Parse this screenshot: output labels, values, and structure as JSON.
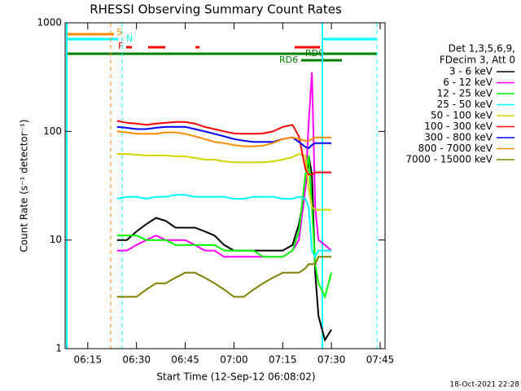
{
  "chart_data": {
    "type": "line",
    "title": "RHESSI Observing Summary Count Rates",
    "x_label": "Start Time (12-Sep-12 06:08:02)",
    "y_label": "Count Rate (s⁻¹ detector⁻¹)",
    "log_y": true,
    "legend_header": [
      "Det 1,3,5,6,9,",
      "FDecim 3, Att 0"
    ],
    "flags": [
      "S",
      "N",
      "F",
      "RD0",
      "RD6"
    ],
    "footer": "18-Oct-2021 22:28",
    "xlim": [
      8.03,
      106.5
    ],
    "xticks": [
      {
        "value": 15,
        "label": "06:15"
      },
      {
        "value": 30,
        "label": "06:30"
      },
      {
        "value": 45,
        "label": "06:45"
      },
      {
        "value": 60,
        "label": "07:00"
      },
      {
        "value": 75,
        "label": "07:15"
      },
      {
        "value": 90,
        "label": "07:30"
      },
      {
        "value": 105,
        "label": "07:45"
      }
    ],
    "ylim": [
      1,
      1000
    ],
    "yticks": [
      1,
      10,
      100,
      1000
    ],
    "x": [
      24,
      27,
      30,
      33,
      36,
      39,
      42,
      45,
      48,
      51,
      54,
      57,
      60,
      63,
      66,
      69,
      72,
      75,
      78,
      80,
      82,
      83,
      84,
      85,
      86,
      88,
      90
    ],
    "series": [
      {
        "name": "3 - 6 keV",
        "color": "#000000",
        "values": [
          10,
          10,
          12,
          14,
          16,
          15,
          13,
          13,
          13,
          12,
          11,
          9,
          8,
          8,
          8,
          8,
          8,
          8,
          9,
          14,
          30,
          60,
          40,
          5,
          2,
          1.2,
          1.5
        ]
      },
      {
        "name": "6 - 12 keV",
        "color": "#ff00ff",
        "values": [
          8,
          8,
          9,
          10,
          11,
          10,
          10,
          10,
          9,
          8,
          8,
          7,
          7,
          7,
          7,
          7,
          7,
          7,
          8,
          10,
          30,
          120,
          350,
          20,
          10,
          9,
          8
        ]
      },
      {
        "name": "12 - 25 keV",
        "color": "#00ff00",
        "values": [
          11,
          11,
          11,
          10,
          10,
          10,
          9,
          9,
          9,
          9,
          9,
          8,
          8,
          8,
          8,
          7,
          7,
          7,
          8,
          12,
          40,
          60,
          20,
          6,
          4,
          3,
          5
        ]
      },
      {
        "name": "25 - 50 keV",
        "color": "#00ffff",
        "values": [
          24,
          25,
          25,
          24,
          25,
          25,
          26,
          26,
          25,
          25,
          25,
          25,
          24,
          24,
          25,
          25,
          25,
          24,
          24,
          25,
          24,
          20,
          8,
          7,
          8,
          8,
          8
        ]
      },
      {
        "name": "50 - 100 keV",
        "color": "#d4d400",
        "values": [
          62,
          62,
          61,
          60,
          60,
          60,
          59,
          59,
          57,
          55,
          55,
          53,
          52,
          52,
          52,
          52,
          53,
          55,
          58,
          62,
          60,
          30,
          20,
          19,
          19,
          19,
          19
        ]
      },
      {
        "name": "100 - 300 keV",
        "color": "#ff0000",
        "values": [
          125,
          120,
          118,
          115,
          118,
          120,
          122,
          122,
          118,
          110,
          105,
          100,
          96,
          95,
          95,
          96,
          100,
          110,
          115,
          90,
          45,
          40,
          40,
          42,
          42,
          42,
          42
        ]
      },
      {
        "name": "300 - 800 keV",
        "color": "#0000ff",
        "values": [
          110,
          108,
          105,
          105,
          108,
          110,
          110,
          110,
          105,
          100,
          95,
          90,
          85,
          82,
          80,
          80,
          80,
          85,
          88,
          80,
          72,
          70,
          75,
          78,
          78,
          78,
          78
        ]
      },
      {
        "name": "800 - 7000 keV",
        "color": "#ff8c00",
        "values": [
          100,
          98,
          95,
          95,
          95,
          98,
          98,
          95,
          90,
          85,
          80,
          78,
          75,
          73,
          73,
          74,
          78,
          85,
          88,
          85,
          82,
          82,
          85,
          88,
          88,
          88,
          88
        ]
      },
      {
        "name": "7000 - 15000 keV",
        "color": "#808000",
        "values": [
          3,
          3,
          3,
          3.5,
          4,
          4,
          4.5,
          5,
          5,
          4.5,
          4,
          3.5,
          3,
          3,
          3.5,
          4,
          4.5,
          5,
          5,
          5,
          5.5,
          6,
          6,
          6,
          7,
          7,
          7
        ]
      }
    ]
  }
}
